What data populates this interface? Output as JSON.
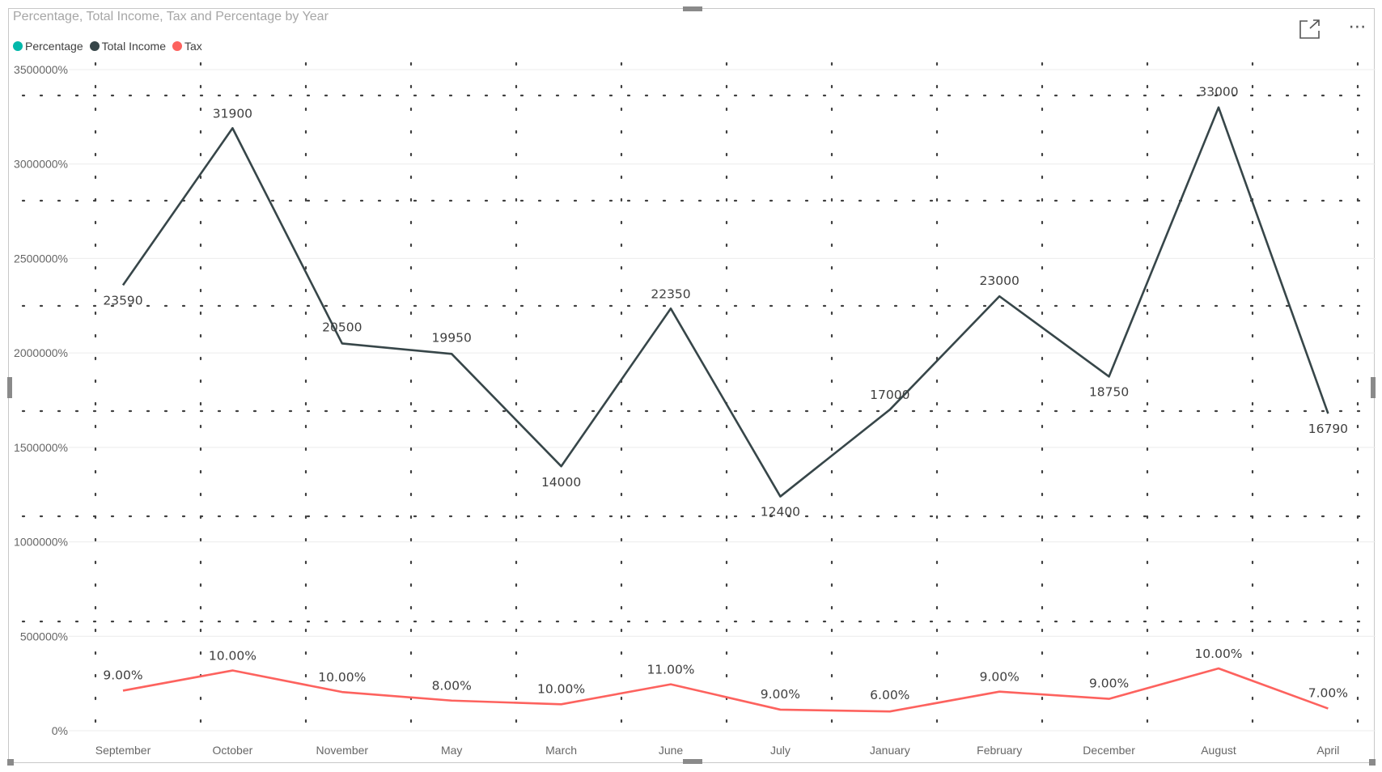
{
  "visual": {
    "title": "Percentage, Total Income, Tax and Percentage by Year",
    "legend": [
      {
        "name": "Percentage",
        "color": "#01B8AA"
      },
      {
        "name": "Total Income",
        "color": "#374649"
      },
      {
        "name": "Tax",
        "color": "#FD625E"
      }
    ],
    "more_options": "⋯"
  },
  "chart_data": {
    "type": "line",
    "title": "Percentage, Total Income, Tax and Percentage by Year",
    "categories": [
      "September",
      "October",
      "November",
      "May",
      "March",
      "June",
      "July",
      "January",
      "February",
      "December",
      "August",
      "April"
    ],
    "y_tick_labels": [
      "0%",
      "500000%",
      "1000000%",
      "1500000%",
      "2000000%",
      "2500000%",
      "3000000%",
      "3500000%"
    ],
    "ylim": [
      0,
      35000
    ],
    "grid": true,
    "legend_position": "top-left",
    "series": [
      {
        "name": "Total Income",
        "color": "#374649",
        "values": [
          23590,
          31900,
          20500,
          19950,
          14000,
          22350,
          12400,
          17000,
          23000,
          18750,
          33000,
          16790
        ],
        "labels": [
          "23590",
          "31900",
          "20500",
          "19950",
          "14000",
          "22350",
          "12400",
          "17000",
          "23000",
          "18750",
          "33000",
          "16790"
        ]
      },
      {
        "name": "Tax",
        "color": "#FD625E",
        "values": [
          2123,
          3190,
          2050,
          1596,
          1400,
          2459,
          1116,
          1020,
          2070,
          1688,
          3300,
          1175
        ],
        "labels": [
          "9.00%",
          "10.00%",
          "10.00%",
          "8.00%",
          "10.00%",
          "11.00%",
          "9.00%",
          "6.00%",
          "9.00%",
          "9.00%",
          "10.00%",
          "7.00%"
        ]
      }
    ]
  }
}
